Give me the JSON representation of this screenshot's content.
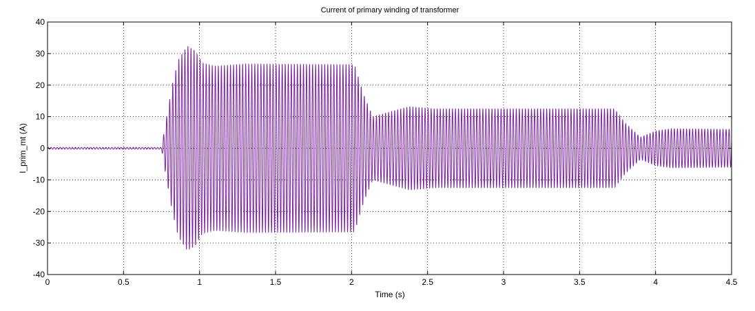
{
  "chart_data": {
    "type": "line",
    "title": "Current of primary winding of transformer",
    "xlabel": "Time (s)",
    "ylabel": "I_prim_mt (A)",
    "xlim": [
      0,
      4.5
    ],
    "ylim": [
      -40,
      40
    ],
    "x_ticks": [
      "0",
      "0.5",
      "1",
      "1.5",
      "2",
      "2.5",
      "3",
      "3.5",
      "4",
      "4.5"
    ],
    "y_ticks": [
      "40",
      "30",
      "20",
      "10",
      "0",
      "-10",
      "-20",
      "-30",
      "-40"
    ],
    "grid": true,
    "signal_frequency_hz": 50,
    "series": [
      {
        "color": "#7B1FA2",
        "envelope_points": [
          {
            "t": 0.0,
            "amp": 0.3
          },
          {
            "t": 0.75,
            "amp": 0.3
          },
          {
            "t": 0.78,
            "amp": 9
          },
          {
            "t": 0.82,
            "amp": 20
          },
          {
            "t": 0.86,
            "amp": 28
          },
          {
            "t": 0.92,
            "amp": 32.5
          },
          {
            "t": 0.97,
            "amp": 31
          },
          {
            "t": 1.02,
            "amp": 27
          },
          {
            "t": 1.1,
            "amp": 26
          },
          {
            "t": 1.3,
            "amp": 26.7
          },
          {
            "t": 2.02,
            "amp": 26.5
          },
          {
            "t": 2.08,
            "amp": 17
          },
          {
            "t": 2.14,
            "amp": 10
          },
          {
            "t": 2.25,
            "amp": 11.5
          },
          {
            "t": 2.38,
            "amp": 13.2
          },
          {
            "t": 2.55,
            "amp": 12.5
          },
          {
            "t": 3.73,
            "amp": 12.5
          },
          {
            "t": 3.8,
            "amp": 8
          },
          {
            "t": 3.9,
            "amp": 3.5
          },
          {
            "t": 4.0,
            "amp": 5.5
          },
          {
            "t": 4.1,
            "amp": 6.2
          },
          {
            "t": 4.5,
            "amp": 6.0
          }
        ]
      }
    ]
  }
}
